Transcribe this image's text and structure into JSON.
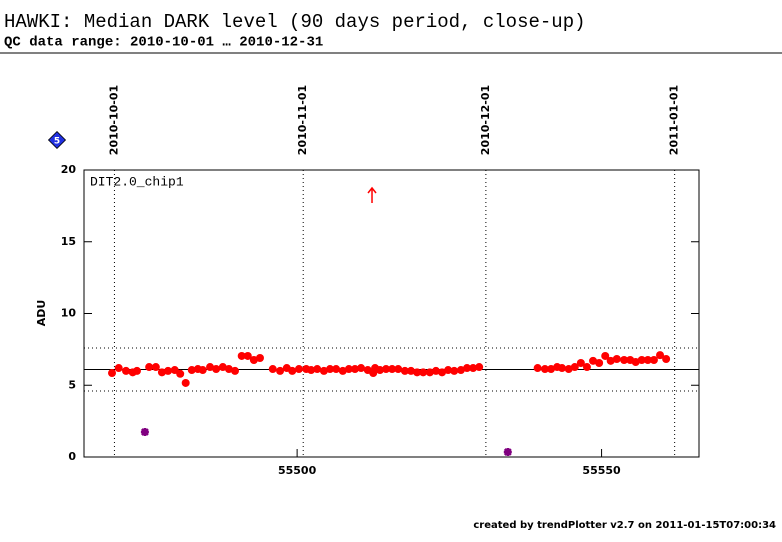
{
  "chart_data": {
    "type": "scatter",
    "title": "HAWKI: Median DARK level (90 days period, close-up)",
    "subtitle": "QC data range: 2010-10-01 … 2010-12-31",
    "badge": "5",
    "panel_label": "DIT2.0_chip1",
    "y_label": "ADU",
    "footer": "created by trendPlotter v2.7 on 2011-01-15T07:00:34",
    "xlim": [
      55465,
      55566
    ],
    "ylim": [
      0,
      20
    ],
    "xticks": [
      55500,
      55550
    ],
    "yticks": [
      0,
      5,
      10,
      15,
      20
    ],
    "date_ticks": [
      {
        "value": 55470,
        "label": "2010-10-01"
      },
      {
        "value": 55501,
        "label": "2010-11-01"
      },
      {
        "value": 55531,
        "label": "2010-12-01"
      },
      {
        "value": 55562,
        "label": "2011-01-01"
      }
    ],
    "ref_lines": [
      {
        "value": 6.1,
        "style": "solid"
      },
      {
        "value": 7.6,
        "style": "dotted"
      },
      {
        "value": 4.6,
        "style": "dotted"
      }
    ],
    "series": [
      {
        "color": "#ff0000",
        "marker": "dot",
        "x": [
          55469.6,
          55470.7,
          55471.9,
          55473.0,
          55473.7,
          55475.7,
          55476.8,
          55477.8,
          55478.8,
          55479.9,
          55480.8,
          55481.7,
          55482.7,
          55483.7,
          55484.5,
          55485.7,
          55486.7,
          55487.8,
          55488.8,
          55489.8,
          55490.9,
          55491.9,
          55492.9,
          55493.9,
          55496.0,
          55497.2,
          55498.3,
          55499.2,
          55500.3,
          55501.5,
          55502.3,
          55503.3,
          55504.4,
          55505.4,
          55506.4,
          55507.5,
          55508.5,
          55509.5,
          55510.5,
          55511.6,
          55512.5,
          55512.8,
          55513.6,
          55514.6,
          55515.6,
          55516.6,
          55517.7,
          55518.7,
          55519.7,
          55520.7,
          55521.8,
          55522.8,
          55523.8,
          55524.8,
          55525.8,
          55526.9,
          55527.9,
          55528.9,
          55529.9,
          55539.5,
          55540.7,
          55541.7,
          55542.7,
          55543.5,
          55544.6,
          55545.6,
          55546.6,
          55547.6,
          55548.6,
          55549.6,
          55550.6,
          55551.5,
          55552.5,
          55553.7,
          55554.7,
          55555.6,
          55556.6,
          55557.6,
          55558.6,
          55559.6,
          55560.6
        ],
        "values": [
          5.85,
          6.2,
          6.0,
          5.9,
          6.0,
          6.27,
          6.27,
          5.9,
          6.0,
          6.06,
          5.8,
          5.16,
          6.06,
          6.13,
          6.06,
          6.27,
          6.13,
          6.27,
          6.13,
          6.0,
          7.04,
          7.04,
          6.76,
          6.9,
          6.13,
          6.0,
          6.2,
          6.0,
          6.13,
          6.13,
          6.06,
          6.13,
          6.0,
          6.13,
          6.13,
          6.0,
          6.13,
          6.13,
          6.2,
          6.06,
          5.85,
          6.2,
          6.06,
          6.13,
          6.13,
          6.13,
          6.0,
          6.0,
          5.9,
          5.9,
          5.9,
          6.0,
          5.9,
          6.06,
          6.0,
          6.06,
          6.2,
          6.2,
          6.27,
          6.2,
          6.13,
          6.13,
          6.27,
          6.2,
          6.13,
          6.27,
          6.55,
          6.27,
          6.7,
          6.55,
          7.04,
          6.7,
          6.83,
          6.76,
          6.76,
          6.62,
          6.76,
          6.76,
          6.76,
          7.1,
          6.83
        ]
      },
      {
        "color": "#800080",
        "marker": "star",
        "x": [
          55475.0,
          55534.6
        ],
        "values": [
          1.74,
          0.35
        ]
      },
      {
        "color": "#ff0000",
        "marker": "arrow",
        "x": [
          55512.3
        ],
        "values": [
          17.7
        ]
      }
    ]
  }
}
